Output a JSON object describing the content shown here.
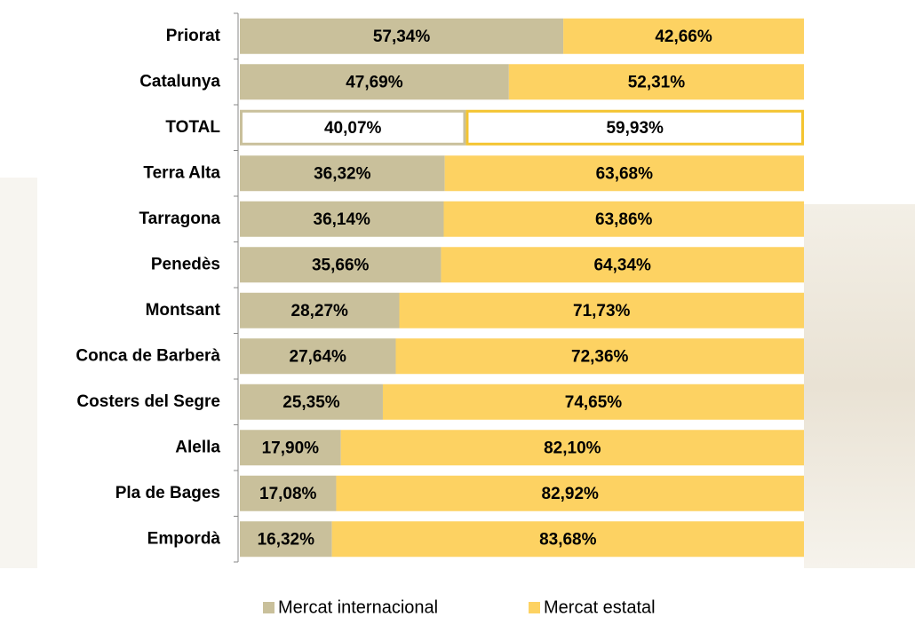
{
  "chart_data": {
    "type": "bar",
    "orientation": "horizontal",
    "stacked": true,
    "categories": [
      "Priorat",
      "Catalunya",
      "TOTAL",
      "Terra Alta",
      "Tarragona",
      "Penedès",
      "Montsant",
      "Conca de Barberà",
      "Costers del Segre",
      "Alella",
      "Pla de Bages",
      "Empordà"
    ],
    "highlight": "TOTAL",
    "xlim": [
      0,
      100
    ],
    "series": [
      {
        "name": "Mercat internacional",
        "color": "#c9c09b",
        "values": [
          57.34,
          47.69,
          40.07,
          36.32,
          36.14,
          35.66,
          28.27,
          27.64,
          25.35,
          17.9,
          17.08,
          16.32
        ],
        "value_labels": [
          "57,34%",
          "47,69%",
          "40,07%",
          "36,32%",
          "36,14%",
          "35,66%",
          "28,27%",
          "27,64%",
          "25,35%",
          "17,90%",
          "17,08%",
          "16,32%"
        ]
      },
      {
        "name": "Mercat estatal",
        "color": "#fdd262",
        "values": [
          42.66,
          52.31,
          59.93,
          63.68,
          63.86,
          64.34,
          71.73,
          72.36,
          74.65,
          82.1,
          82.92,
          83.68
        ],
        "value_labels": [
          "42,66%",
          "52,31%",
          "59,93%",
          "63,68%",
          "63,86%",
          "64,34%",
          "71,73%",
          "72,36%",
          "74,65%",
          "82,10%",
          "82,92%",
          "83,68%"
        ]
      }
    ],
    "legend": "bottom"
  }
}
